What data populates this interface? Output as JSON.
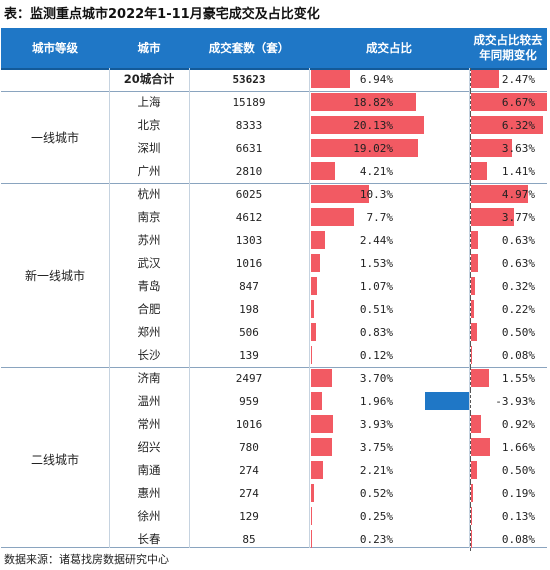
{
  "title": "表：监测重点城市2022年1-11月豪宅成交及占比变化",
  "headers": {
    "tier": "城市等级",
    "city": "城市",
    "units": "成交套数（套）",
    "share": "成交占比",
    "change": "成交占比较去年同期变化"
  },
  "total": {
    "city": "20城合计",
    "units": "53623",
    "share_label": "6.94%",
    "share": 6.94,
    "change_label": "2.47%",
    "change": 2.47
  },
  "tiers": [
    {
      "name": "一线城市",
      "rows": [
        {
          "city": "上海",
          "units": "15189",
          "share_label": "18.82%",
          "share": 18.82,
          "change_label": "6.67%",
          "change": 6.67
        },
        {
          "city": "北京",
          "units": "8333",
          "share_label": "20.13%",
          "share": 20.13,
          "change_label": "6.32%",
          "change": 6.32
        },
        {
          "city": "深圳",
          "units": "6631",
          "share_label": "19.02%",
          "share": 19.02,
          "change_label": "3.63%",
          "change": 3.63
        },
        {
          "city": "广州",
          "units": "2810",
          "share_label": "4.21%",
          "share": 4.21,
          "change_label": "1.41%",
          "change": 1.41
        }
      ]
    },
    {
      "name": "新一线城市",
      "rows": [
        {
          "city": "杭州",
          "units": "6025",
          "share_label": "10.3%",
          "share": 10.3,
          "change_label": "4.97%",
          "change": 4.97
        },
        {
          "city": "南京",
          "units": "4612",
          "share_label": "7.7%",
          "share": 7.7,
          "change_label": "3.77%",
          "change": 3.77
        },
        {
          "city": "苏州",
          "units": "1303",
          "share_label": "2.44%",
          "share": 2.44,
          "change_label": "0.63%",
          "change": 0.63
        },
        {
          "city": "武汉",
          "units": "1016",
          "share_label": "1.53%",
          "share": 1.53,
          "change_label": "0.63%",
          "change": 0.63
        },
        {
          "city": "青岛",
          "units": "847",
          "share_label": "1.07%",
          "share": 1.07,
          "change_label": "0.32%",
          "change": 0.32
        },
        {
          "city": "合肥",
          "units": "198",
          "share_label": "0.51%",
          "share": 0.51,
          "change_label": "0.22%",
          "change": 0.22
        },
        {
          "city": "郑州",
          "units": "506",
          "share_label": "0.83%",
          "share": 0.83,
          "change_label": "0.50%",
          "change": 0.5
        },
        {
          "city": "长沙",
          "units": "139",
          "share_label": "0.12%",
          "share": 0.12,
          "change_label": "0.08%",
          "change": 0.08
        }
      ]
    },
    {
      "name": "二线城市",
      "rows": [
        {
          "city": "济南",
          "units": "2497",
          "share_label": "3.70%",
          "share": 3.7,
          "change_label": "1.55%",
          "change": 1.55
        },
        {
          "city": "温州",
          "units": "959",
          "share_label": "1.96%",
          "share": 1.96,
          "change_label": "-3.93%",
          "change": -3.93
        },
        {
          "city": "常州",
          "units": "1016",
          "share_label": "3.93%",
          "share": 3.93,
          "change_label": "0.92%",
          "change": 0.92
        },
        {
          "city": "绍兴",
          "units": "780",
          "share_label": "3.75%",
          "share": 3.75,
          "change_label": "1.66%",
          "change": 1.66
        },
        {
          "city": "南通",
          "units": "274",
          "share_label": "2.21%",
          "share": 2.21,
          "change_label": "0.50%",
          "change": 0.5
        },
        {
          "city": "惠州",
          "units": "274",
          "share_label": "0.52%",
          "share": 0.52,
          "change_label": "0.19%",
          "change": 0.19
        },
        {
          "city": "徐州",
          "units": "129",
          "share_label": "0.25%",
          "share": 0.25,
          "change_label": "0.13%",
          "change": 0.13
        },
        {
          "city": "长春",
          "units": "85",
          "share_label": "0.23%",
          "share": 0.23,
          "change_label": "0.08%",
          "change": 0.08
        }
      ]
    }
  ],
  "colors": {
    "header_bg": "#1f77c6",
    "positive_bar": "#f25a63",
    "negative_bar": "#1f77c6"
  },
  "footer": "数据来源：诸葛找房数据研究中心"
}
